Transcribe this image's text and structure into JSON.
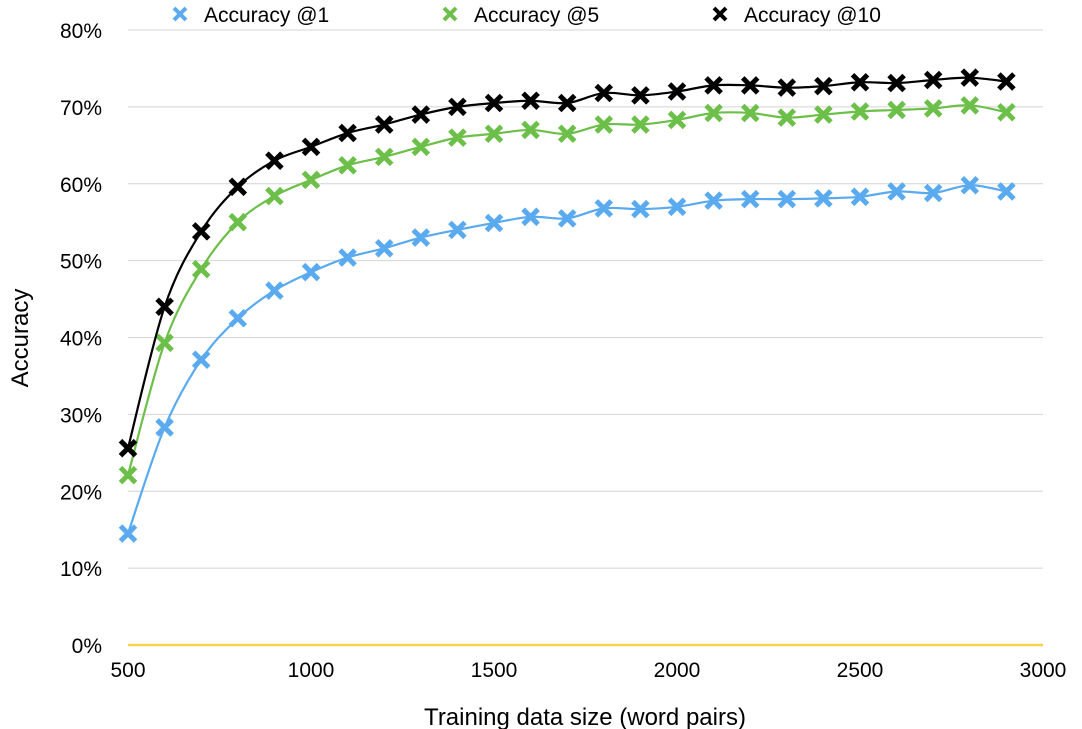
{
  "chart_data": {
    "type": "line",
    "title": "",
    "xlabel": "Training data size (word pairs)",
    "ylabel": "Accuracy",
    "xlim": [
      500,
      3000
    ],
    "ylim": [
      0,
      80
    ],
    "x_ticks": [
      "500",
      "1000",
      "1500",
      "2000",
      "2500",
      "3000"
    ],
    "y_ticks": [
      "0%",
      "10%",
      "20%",
      "30%",
      "40%",
      "50%",
      "60%",
      "70%",
      "80%"
    ],
    "grid": "horizontal",
    "legend_position": "top",
    "marker": "x",
    "x": [
      500,
      600,
      700,
      800,
      900,
      1000,
      1100,
      1200,
      1300,
      1400,
      1500,
      1600,
      1700,
      1800,
      1900,
      2000,
      2100,
      2200,
      2300,
      2400,
      2500,
      2600,
      2700,
      2800,
      2900
    ],
    "series": [
      {
        "name": "Accuracy @1",
        "color": "#5aaaf0",
        "values": [
          14.5,
          28.3,
          37.1,
          42.5,
          46.1,
          48.5,
          50.4,
          51.6,
          53.0,
          54.0,
          54.9,
          55.7,
          55.5,
          56.8,
          56.7,
          57.0,
          57.8,
          58.0,
          58.0,
          58.1,
          58.3,
          59.0,
          58.8,
          59.8,
          59.0
        ]
      },
      {
        "name": "Accuracy @5",
        "color": "#6cbf48",
        "values": [
          22.1,
          39.3,
          48.9,
          55.0,
          58.4,
          60.5,
          62.4,
          63.5,
          64.8,
          66.0,
          66.5,
          67.0,
          66.5,
          67.7,
          67.7,
          68.3,
          69.2,
          69.2,
          68.6,
          69.0,
          69.4,
          69.6,
          69.8,
          70.2,
          69.3
        ]
      },
      {
        "name": "Accuracy @10",
        "color": "#000000",
        "values": [
          25.6,
          44.0,
          53.8,
          59.6,
          63.0,
          64.8,
          66.6,
          67.7,
          69.0,
          70.0,
          70.5,
          70.8,
          70.5,
          71.8,
          71.5,
          72.0,
          72.8,
          72.8,
          72.5,
          72.7,
          73.2,
          73.1,
          73.5,
          73.8,
          73.3
        ]
      }
    ],
    "baseline": {
      "value": 0,
      "color": "#f7d24a"
    }
  }
}
